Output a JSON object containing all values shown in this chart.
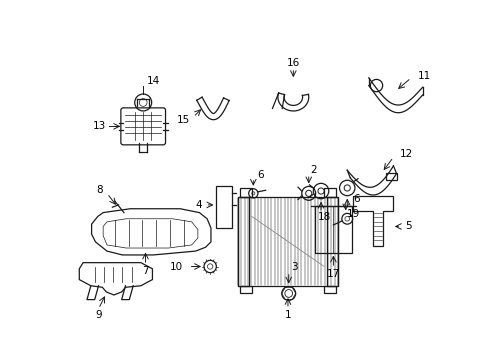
{
  "bg_color": "#ffffff",
  "line_color": "#1a1a1a",
  "label_color": "#000000",
  "figsize": [
    4.89,
    3.6
  ],
  "dpi": 100,
  "lw": 0.9,
  "fontsize": 7.5
}
